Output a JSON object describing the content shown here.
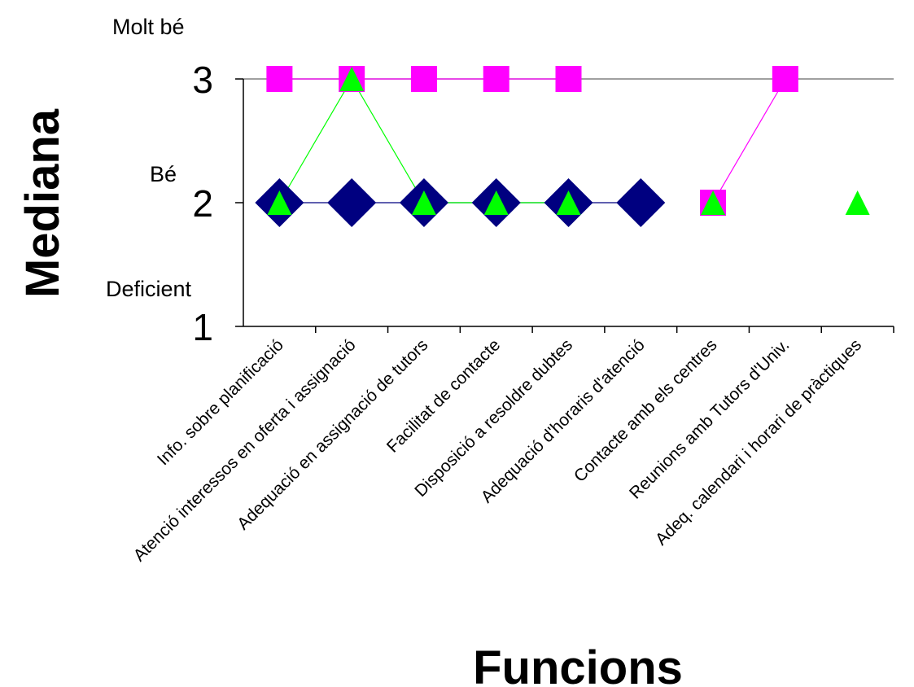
{
  "chart_data": {
    "type": "line",
    "xlabel": "Funcions",
    "ylabel": "Mediana",
    "ylim": [
      1,
      3
    ],
    "yticks": [
      "1",
      "2",
      "3"
    ],
    "level_labels": [
      "Deficient",
      "Bé",
      "Molt bé"
    ],
    "gridlines": "horizontal at 3",
    "categories": [
      "Info. sobre planificació",
      "Atenció interessos en oferta i assignació",
      "Adequació en assignació de tutors",
      "Facilitat de contacte",
      "Disposició a resoldre dubtes",
      "Adequació d'horaris d'atenció",
      "Contacte amb els centres",
      "Reunions amb Tutors d'Univ.",
      "Adeq. calendari i horari de pràctiques"
    ],
    "series": [
      {
        "marker": "diamond",
        "color": "#000080",
        "values": [
          2,
          2,
          2,
          2,
          2,
          2,
          null,
          null,
          null
        ]
      },
      {
        "marker": "square",
        "color": "#FF00FF",
        "values": [
          3,
          3,
          3,
          3,
          3,
          null,
          2,
          3,
          null
        ]
      },
      {
        "marker": "triangle",
        "color": "#00FF00",
        "values": [
          2,
          3,
          2,
          2,
          2,
          null,
          2,
          null,
          2
        ]
      }
    ]
  }
}
